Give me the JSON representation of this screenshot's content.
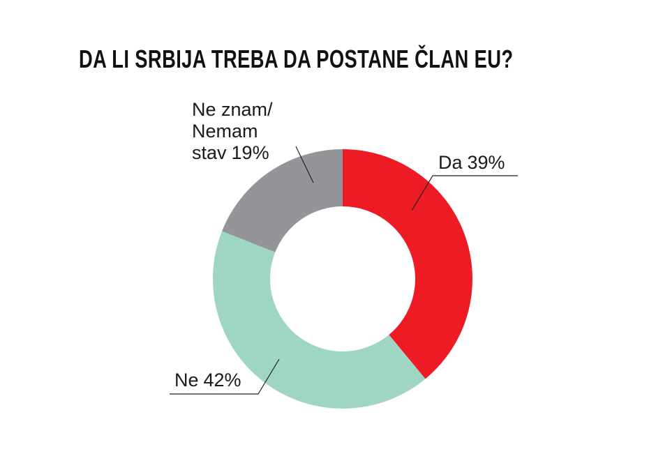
{
  "chart_data": {
    "type": "donut",
    "title": "DA LI SRBIJA TREBA DA POSTANE ČLAN EU?",
    "categories": [
      "Da",
      "Ne",
      "Ne znam/ Nemam stav"
    ],
    "values": [
      39,
      42,
      19
    ],
    "value_labels": [
      "39%",
      "42%",
      "19%"
    ],
    "colors": [
      "#ed1c24",
      "#9fd6c3",
      "#939598"
    ]
  }
}
